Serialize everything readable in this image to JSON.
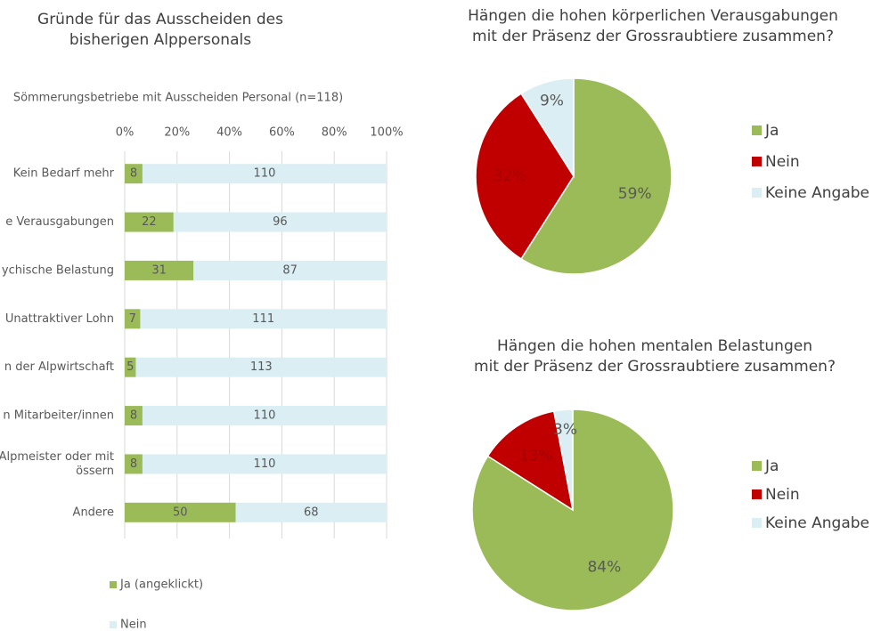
{
  "chart_data": [
    {
      "type": "bar",
      "orientation": "horizontal",
      "stack": "percent",
      "title": [
        "Gründe für das Ausscheiden des",
        "bisherigen Alppersonals"
      ],
      "subtitle": "Sömmerungsbetriebe mit Ausscheiden Personal (n=118)",
      "categories": [
        "Kein Bedarf mehr",
        "e Verausgabungen",
        "ychische Belastung",
        "Unattraktiver Lohn",
        "n der Alpwirtschaft",
        "n Mitarbeiter/innen",
        [
          "Alpmeister oder mit",
          "össern"
        ],
        "Andere"
      ],
      "series": [
        {
          "name": "Ja (angeklickt)",
          "color": "#9bbb59",
          "values": [
            8,
            22,
            31,
            7,
            5,
            8,
            8,
            50
          ]
        },
        {
          "name": "Nein",
          "color": "#daeef3",
          "values": [
            110,
            96,
            87,
            111,
            113,
            110,
            110,
            68
          ]
        }
      ],
      "xlim": [
        0,
        100
      ],
      "xticks": [
        {
          "value": 0,
          "label": "0%"
        },
        {
          "value": 20,
          "label": "20%"
        },
        {
          "value": 40,
          "label": "40%"
        },
        {
          "value": 60,
          "label": "60%"
        },
        {
          "value": 80,
          "label": "80%"
        },
        {
          "value": 100,
          "label": "100%"
        }
      ],
      "grid": true,
      "legend": "bottom"
    },
    {
      "type": "pie",
      "title": [
        "Hängen die hohen körperlichen Verausgabungen",
        "mit der Präsenz der Grossraubtiere zusammen?"
      ],
      "categories": [
        "Ja",
        "Nein",
        "Keine Angabe"
      ],
      "values": [
        59,
        32,
        9
      ],
      "value_labels": [
        "59%",
        "32%",
        "9%"
      ],
      "colors": [
        "#9bbb59",
        "#c00000",
        "#daeef3"
      ],
      "legend": "right"
    },
    {
      "type": "pie",
      "title": [
        "Hängen die hohen mentalen Belastungen",
        "mit der Präsenz der Grossraubtiere zusammen?"
      ],
      "categories": [
        "Ja",
        "Nein",
        "Keine Angabe"
      ],
      "values": [
        84,
        13,
        3
      ],
      "value_labels": [
        "84%",
        "13%",
        "3%"
      ],
      "colors": [
        "#9bbb59",
        "#c00000",
        "#daeef3"
      ],
      "legend": "right"
    }
  ]
}
